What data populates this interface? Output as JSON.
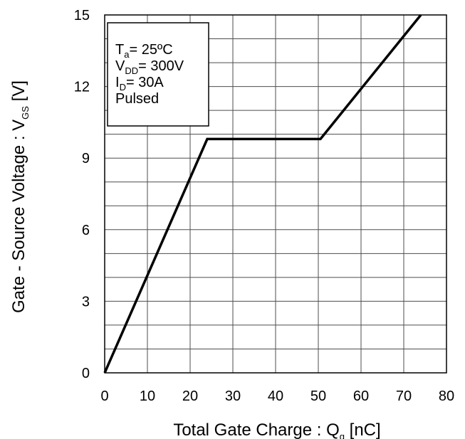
{
  "chart_data": {
    "type": "line",
    "xlabel": {
      "main": "Total Gate Charge : Q",
      "sub": "g",
      "unit": " [nC]"
    },
    "ylabel": {
      "main": "Gate - Source Voltage : V",
      "sub": "GS",
      "unit": " [V]"
    },
    "xlim": [
      0,
      80
    ],
    "ylim": [
      0,
      15
    ],
    "x_ticks": [
      0,
      10,
      20,
      30,
      40,
      50,
      60,
      70,
      80
    ],
    "y_ticks": [
      0,
      3,
      6,
      9,
      12,
      15
    ],
    "x_minor_step": 10,
    "y_minor_step": 1,
    "grid": true,
    "series": [
      {
        "color": "#000000",
        "x": [
          0,
          24,
          50.5,
          74
        ],
        "y": [
          0,
          9.8,
          9.8,
          15
        ]
      }
    ],
    "annotation": {
      "lines": [
        {
          "main": "T",
          "sub": "a",
          "rest": "= 25ºC"
        },
        {
          "main": "V",
          "sub": "DD",
          "rest": "= 300V"
        },
        {
          "main": "I",
          "sub": "D",
          "rest": "= 30A"
        },
        {
          "main": "Pulsed",
          "sub": "",
          "rest": ""
        }
      ],
      "placement": "top-left"
    }
  }
}
